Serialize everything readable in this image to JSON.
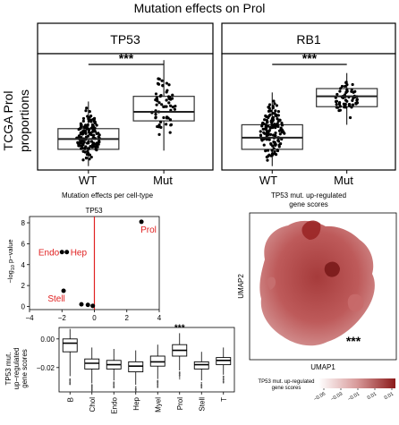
{
  "title": "Mutation effects on Prol",
  "boxplot_panels": {
    "ylabel_line1": "TCGA Prol",
    "ylabel_line2": "proportions",
    "significance": "***"
  },
  "caption_left": "Mutation effects per cell-type",
  "caption_right_line1": "TP53 mut. up-regulated",
  "caption_right_line2": "gene scores",
  "umap": {
    "xlabel": "UMAP1",
    "ylabel": "UMAP2",
    "significance": "***",
    "colorbar_title_line1": "TP53 mut. up-regulated",
    "colorbar_title_line2": "gene scores",
    "colorbar_ticks": [
      "-0.05",
      "-0.03",
      "-0.01",
      "0.01",
      "0.01"
    ],
    "colors": {
      "low": "#ffffff",
      "high": "#8b1a1a"
    }
  },
  "chart_data": [
    {
      "type": "box",
      "panel": "TP53",
      "categories": [
        "WT",
        "Mut"
      ],
      "boxes": [
        {
          "name": "WT",
          "whisker_low": -0.02,
          "q1": 0.11,
          "median": 0.19,
          "q3": 0.27,
          "whisker_high": 0.48
        },
        {
          "name": "Mut",
          "whisker_low": 0.1,
          "q1": 0.33,
          "median": 0.4,
          "q3": 0.52,
          "whisker_high": 0.8
        }
      ],
      "ylim": [
        -0.05,
        0.85
      ],
      "annotation": "***"
    },
    {
      "type": "box",
      "panel": "RB1",
      "categories": [
        "WT",
        "Mut"
      ],
      "boxes": [
        {
          "name": "WT",
          "whisker_low": -0.02,
          "q1": 0.11,
          "median": 0.2,
          "q3": 0.3,
          "whisker_high": 0.55
        },
        {
          "name": "Mut",
          "whisker_low": 0.3,
          "q1": 0.44,
          "median": 0.52,
          "q3": 0.58,
          "whisker_high": 0.7
        }
      ],
      "ylim": [
        -0.05,
        0.85
      ],
      "annotation": "***"
    },
    {
      "type": "scatter",
      "title": "TP53",
      "ylabel": "-log10 p-value",
      "xlim": [
        -4,
        4
      ],
      "ylim": [
        -0.3,
        8.6
      ],
      "xticks": [
        "-4",
        "-2",
        "0",
        "2",
        "4"
      ],
      "yticks": [
        "0",
        "2",
        "4",
        "6",
        "8"
      ],
      "vline": 0,
      "points": [
        {
          "label": "Prol",
          "x": 2.9,
          "y": 8.1
        },
        {
          "label": "Endo",
          "x": -2.0,
          "y": 5.2
        },
        {
          "label": "Hep",
          "x": -1.7,
          "y": 5.2
        },
        {
          "label": "Stell",
          "x": -1.9,
          "y": 1.5
        },
        {
          "label": "",
          "x": -0.8,
          "y": 0.2
        },
        {
          "label": "",
          "x": -0.4,
          "y": 0.15
        },
        {
          "label": "",
          "x": -0.1,
          "y": 0.05
        }
      ]
    },
    {
      "type": "box",
      "ylabel": "TP53 mut. up-regulated gene scores",
      "categories": [
        "B",
        "Chol",
        "Endo",
        "Hep",
        "Myel",
        "Prol",
        "Stell",
        "T"
      ],
      "ylim": [
        -0.037,
        0.008
      ],
      "yticks": [
        "0.00",
        "-0.02"
      ],
      "boxes": [
        {
          "name": "B",
          "whisker_low": -0.026,
          "q1": -0.009,
          "median": -0.003,
          "q3": 0.0,
          "whisker_high": 0.007
        },
        {
          "name": "Chol",
          "whisker_low": -0.031,
          "q1": -0.021,
          "median": -0.017,
          "q3": -0.014,
          "whisker_high": -0.006
        },
        {
          "name": "Endo",
          "whisker_low": -0.029,
          "q1": -0.021,
          "median": -0.018,
          "q3": -0.015,
          "whisker_high": -0.007
        },
        {
          "name": "Hep",
          "whisker_low": -0.032,
          "q1": -0.023,
          "median": -0.019,
          "q3": -0.016,
          "whisker_high": -0.008
        },
        {
          "name": "Myel",
          "whisker_low": -0.028,
          "q1": -0.019,
          "median": -0.016,
          "q3": -0.012,
          "whisker_high": -0.004
        },
        {
          "name": "Prol",
          "whisker_low": -0.022,
          "q1": -0.012,
          "median": -0.008,
          "q3": -0.004,
          "whisker_high": 0.004
        },
        {
          "name": "Stell",
          "whisker_low": -0.029,
          "q1": -0.021,
          "median": -0.018,
          "q3": -0.016,
          "whisker_high": -0.009
        },
        {
          "name": "T",
          "whisker_low": -0.025,
          "q1": -0.018,
          "median": -0.015,
          "q3": -0.013,
          "whisker_high": -0.006
        }
      ],
      "annotation": {
        "category": "Prol",
        "text": "***"
      }
    }
  ]
}
